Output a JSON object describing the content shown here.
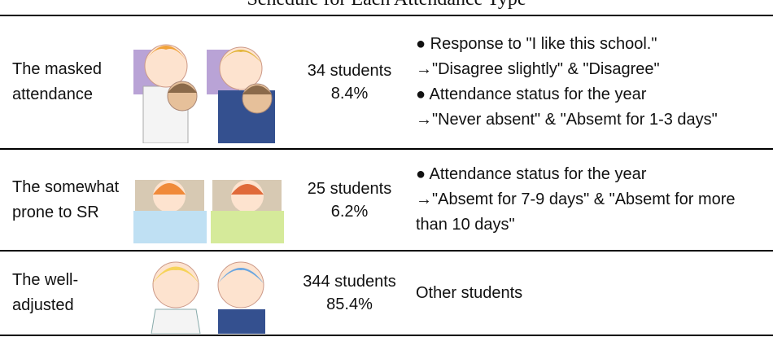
{
  "title": "Schedule for Each Attendance Type",
  "table": {
    "rows": [
      {
        "type": "The masked attendance",
        "count": "34 students",
        "percent": "8.4%",
        "description": [
          "● Response to \"I like this school.\"",
          "→\"Disagree slightly\" & \"Disagree\"",
          "● Attendance status for the year",
          "→\"Never absent\" & \"Absemt for 1-3 days\""
        ]
      },
      {
        "type": "The somewhat prone to SR",
        "count": "25 students",
        "percent": "6.2%",
        "description": [
          "● Attendance status for the year",
          "→\"Absemt for 7-9 days\" & \"Absemt for more than 10 days\""
        ]
      },
      {
        "type": "The well-adjusted",
        "count": "344 students",
        "percent": "85.4%",
        "description": [
          "Other students"
        ]
      }
    ]
  }
}
